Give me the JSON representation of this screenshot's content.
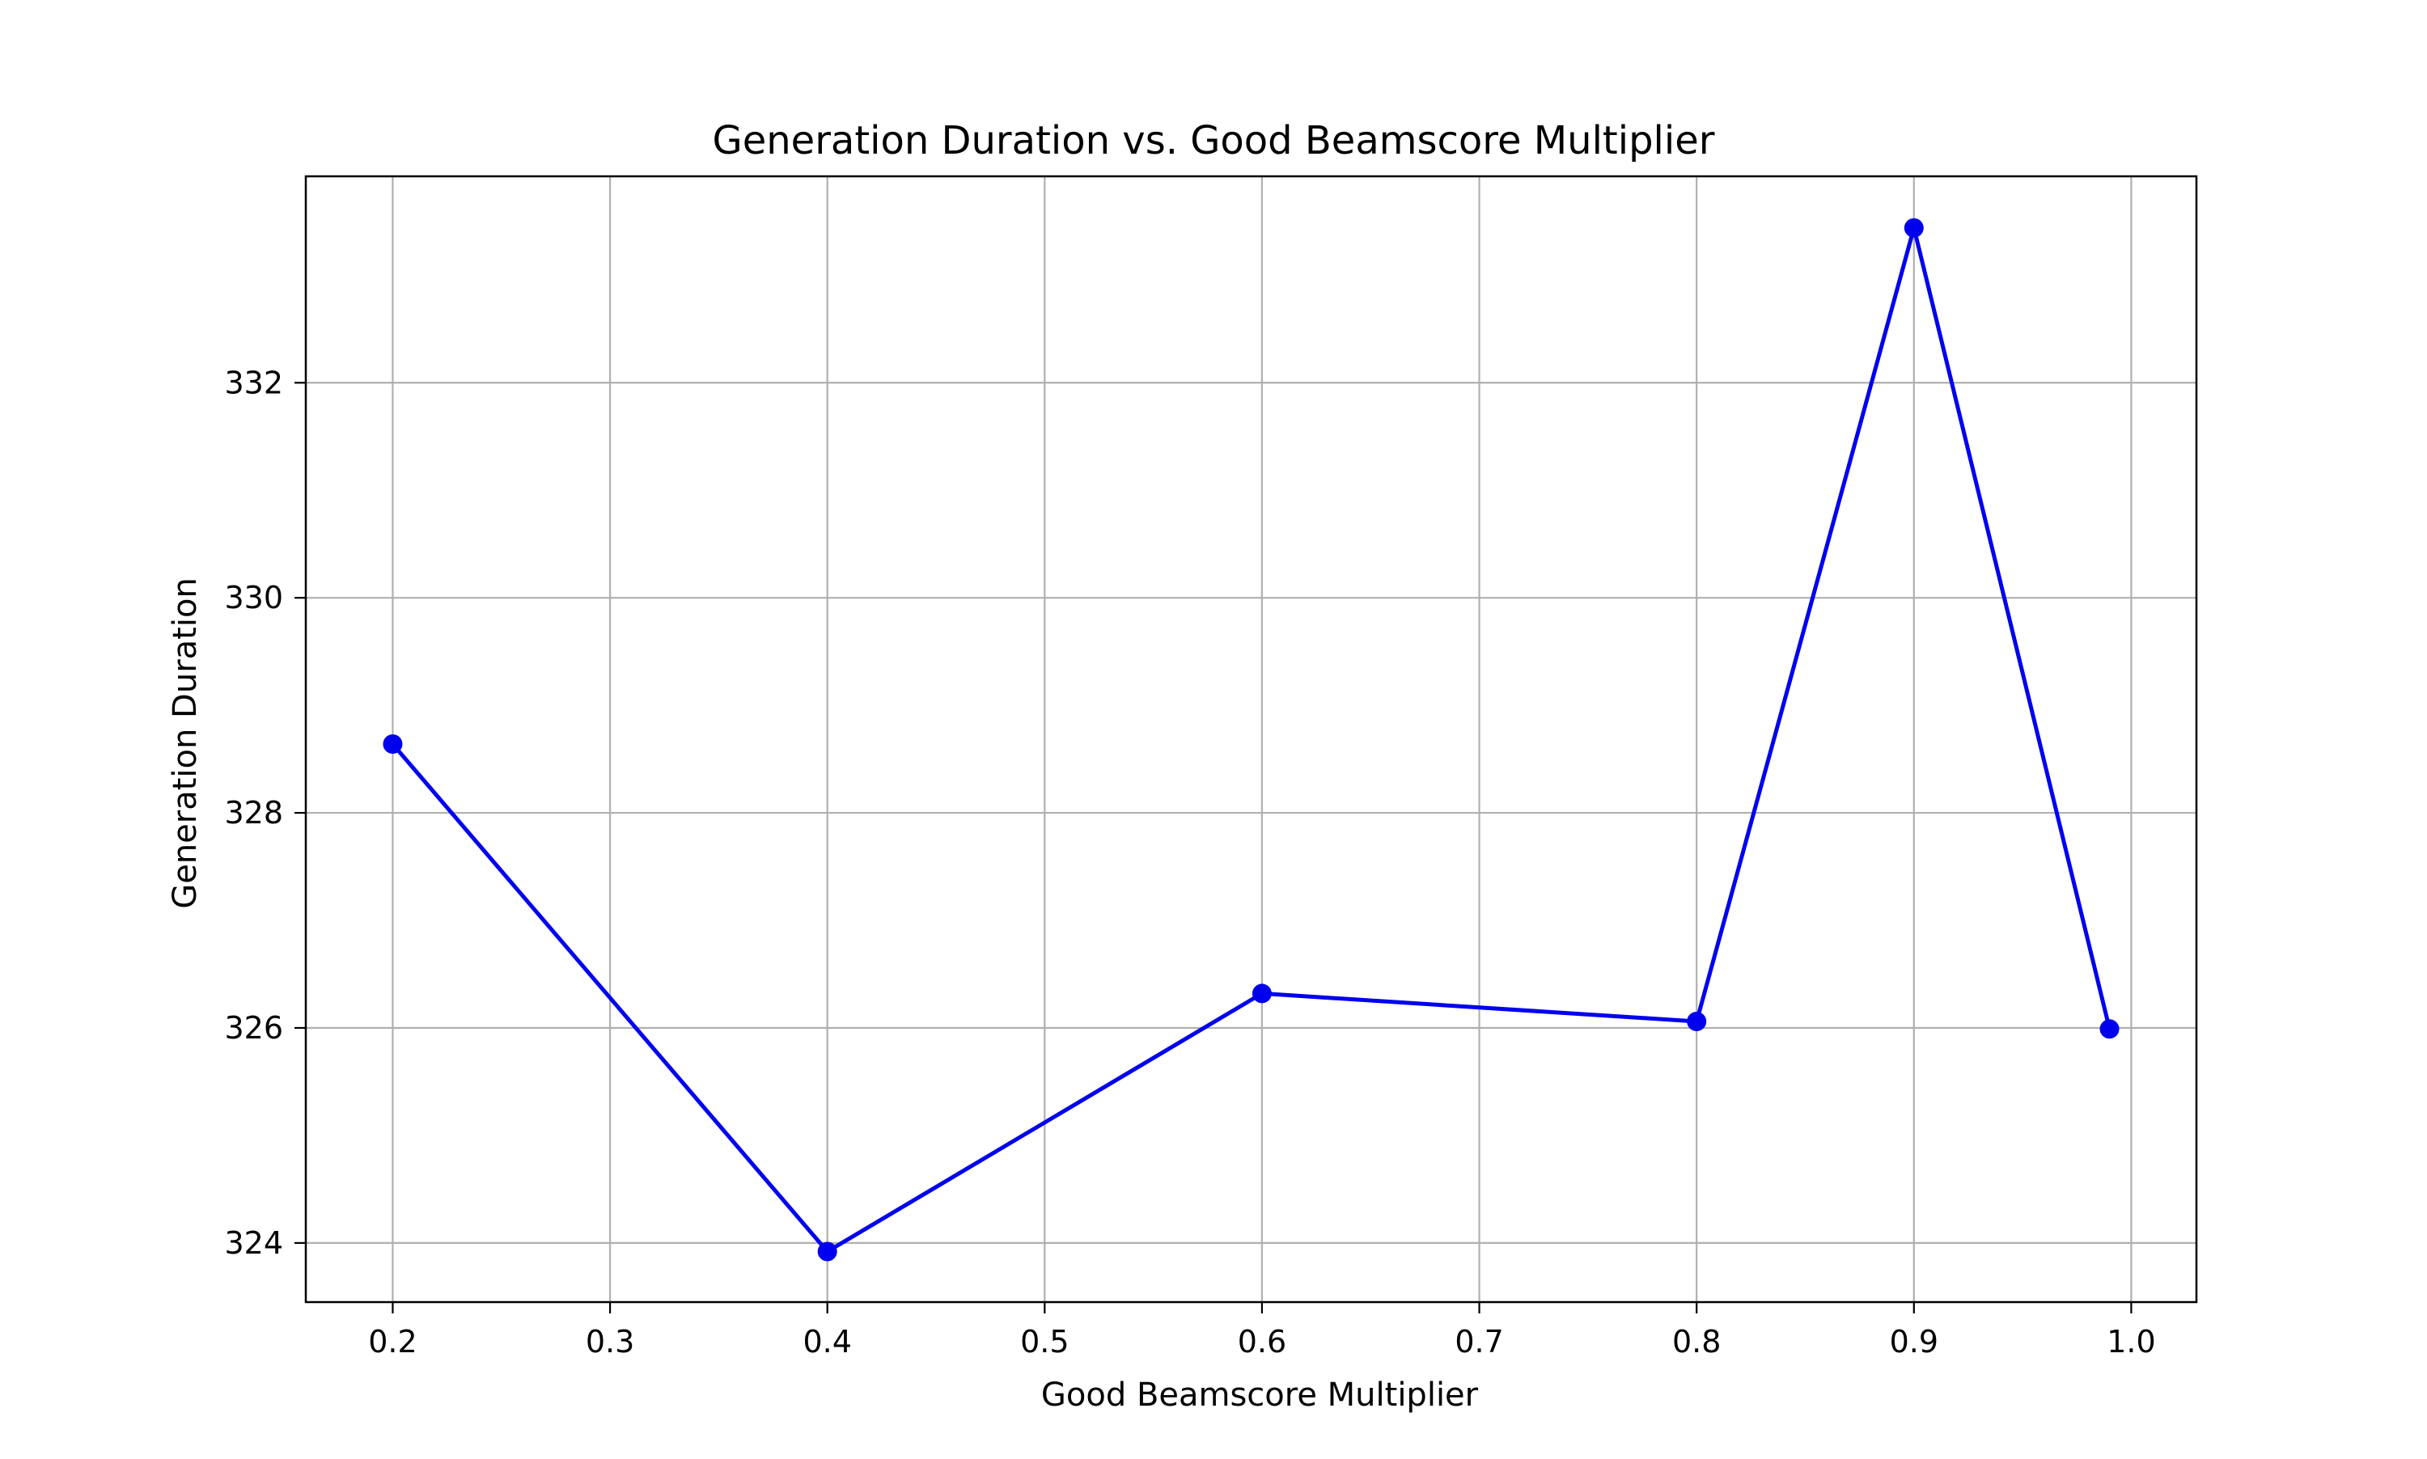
{
  "chart_data": {
    "type": "line",
    "title": "Generation Duration vs. Good Beamscore Multiplier",
    "xlabel": "Good Beamscore Multiplier",
    "ylabel": "Generation Duration",
    "xlim": [
      0.16,
      1.03
    ],
    "ylim": [
      323.45,
      333.92
    ],
    "xticks": [
      0.2,
      0.3,
      0.4,
      0.5,
      0.6,
      0.7,
      0.8,
      0.9,
      1.0
    ],
    "xtick_labels": [
      "0.2",
      "0.3",
      "0.4",
      "0.5",
      "0.6",
      "0.7",
      "0.8",
      "0.9",
      "1.0"
    ],
    "yticks": [
      324,
      326,
      328,
      330,
      332
    ],
    "ytick_labels": [
      "324",
      "326",
      "328",
      "330",
      "332"
    ],
    "grid": true,
    "legend": "none",
    "series": [
      {
        "color": "#0000ee",
        "marker": "circle",
        "x": [
          0.2,
          0.4,
          0.6,
          0.8,
          0.9,
          0.99
        ],
        "y": [
          328.64,
          323.92,
          326.32,
          326.06,
          333.44,
          325.99
        ]
      }
    ]
  }
}
